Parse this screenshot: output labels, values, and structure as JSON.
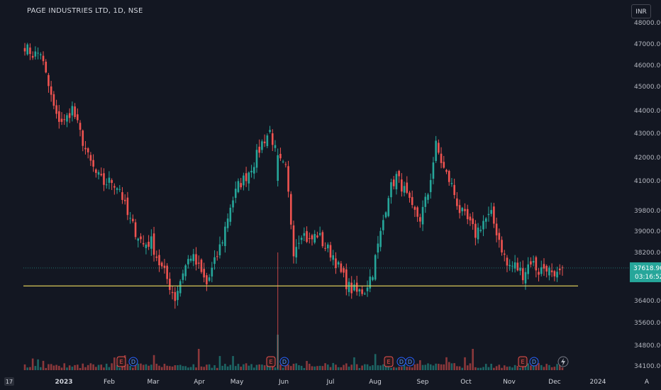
{
  "header": {
    "title": "PAGE INDUSTRIES LTD, 1D, NSE",
    "currency": "INR",
    "logo_text": "17"
  },
  "chart_data": {
    "type": "candlestick",
    "symbol": "PAGE INDUSTRIES LTD",
    "timeframe": "1D",
    "exchange": "NSE",
    "currency": "INR",
    "y_ticks": [
      "48000.00",
      "47000.00",
      "46000.00",
      "45000.00",
      "44000.00",
      "43000.00",
      "42000.00",
      "41000.00",
      "39800.00",
      "39000.00",
      "38200.00",
      "36400.00",
      "35600.00",
      "34800.00",
      "34100.00"
    ],
    "x_ticks": [
      {
        "label": "2023",
        "bold": true
      },
      {
        "label": "Feb",
        "bold": false
      },
      {
        "label": "Mar",
        "bold": false
      },
      {
        "label": "Apr",
        "bold": false
      },
      {
        "label": "May",
        "bold": false
      },
      {
        "label": "Jun",
        "bold": false
      },
      {
        "label": "Jul",
        "bold": false
      },
      {
        "label": "Aug",
        "bold": false
      },
      {
        "label": "Sep",
        "bold": false
      },
      {
        "label": "Oct",
        "bold": false
      },
      {
        "label": "Nov",
        "bold": false
      },
      {
        "label": "Dec",
        "bold": false
      },
      {
        "label": "2024",
        "bold": false
      }
    ],
    "last_price": "37618.90",
    "countdown": "03:16:52",
    "support_level": 36950,
    "close_path": [
      [
        "Dec 2022",
        46900
      ],
      [
        "Dec 2022",
        46500
      ],
      [
        "Dec 2022",
        46600
      ],
      [
        "Dec 2022",
        45000
      ],
      [
        "Jan 2023",
        43700
      ],
      [
        "Jan 2023",
        43500
      ],
      [
        "Jan 2023",
        44100
      ],
      [
        "Jan 2023",
        43000
      ],
      [
        "Jan 2023",
        42000
      ],
      [
        "Jan 2023",
        41300
      ],
      [
        "Jan 2023",
        40900
      ],
      [
        "Feb 2023",
        41000
      ],
      [
        "Feb 2023",
        40700
      ],
      [
        "Feb 2023",
        39600
      ],
      [
        "Feb 2023",
        39000
      ],
      [
        "Feb 2023",
        38500
      ],
      [
        "Feb 2023",
        38600
      ],
      [
        "Mar 2023",
        37800
      ],
      [
        "Mar 2023",
        37200
      ],
      [
        "Mar 2023",
        36500
      ],
      [
        "Mar 2023",
        37500
      ],
      [
        "Mar 2023",
        38100
      ],
      [
        "Apr 2023",
        37600
      ],
      [
        "Apr 2023",
        37000
      ],
      [
        "Apr 2023",
        37800
      ],
      [
        "Apr 2023",
        38700
      ],
      [
        "Apr 2023",
        40000
      ],
      [
        "Apr 2023",
        40800
      ],
      [
        "May 2023",
        41200
      ],
      [
        "May 2023",
        41800
      ],
      [
        "May 2023",
        42600
      ],
      [
        "May 2023",
        43100
      ],
      [
        "May 2023",
        41900
      ],
      [
        "May 2023",
        41500
      ],
      [
        "Jun 2023",
        38300
      ],
      [
        "Jun 2023",
        39000
      ],
      [
        "Jun 2023",
        38600
      ],
      [
        "Jun 2023",
        38900
      ],
      [
        "Jun 2023",
        38400
      ],
      [
        "Jul 2023",
        38100
      ],
      [
        "Jul 2023",
        37400
      ],
      [
        "Jul 2023",
        36900
      ],
      [
        "Jul 2023",
        36700
      ],
      [
        "Jul 2023",
        36800
      ],
      [
        "Aug 2023",
        37500
      ],
      [
        "Aug 2023",
        38900
      ],
      [
        "Aug 2023",
        40500
      ],
      [
        "Aug 2023",
        41200
      ],
      [
        "Aug 2023",
        40600
      ],
      [
        "Aug 2023",
        39800
      ],
      [
        "Sep 2023",
        39500
      ],
      [
        "Sep 2023",
        40500
      ],
      [
        "Sep 2023",
        42500
      ],
      [
        "Sep 2023",
        41500
      ],
      [
        "Sep 2023",
        40800
      ],
      [
        "Sep 2023",
        39800
      ],
      [
        "Oct 2023",
        39400
      ],
      [
        "Oct 2023",
        38900
      ],
      [
        "Oct 2023",
        39400
      ],
      [
        "Oct 2023",
        39600
      ],
      [
        "Oct 2023",
        38700
      ],
      [
        "Nov 2023",
        37700
      ],
      [
        "Nov 2023",
        37700
      ],
      [
        "Nov 2023",
        37400
      ],
      [
        "Nov 2023",
        37900
      ],
      [
        "Nov 2023",
        37500
      ],
      [
        "Dec 2023",
        37700
      ],
      [
        "Dec 2023",
        37100
      ],
      [
        "Dec 2023",
        37618.9
      ]
    ],
    "events": [
      {
        "label": "E",
        "type": "earnings"
      },
      {
        "label": "D",
        "type": "dividend"
      },
      {
        "label": "E",
        "type": "earnings"
      },
      {
        "label": "D",
        "type": "dividend"
      },
      {
        "label": "E",
        "type": "earnings"
      },
      {
        "label": "D",
        "type": "dividend"
      },
      {
        "label": "D",
        "type": "dividend"
      },
      {
        "label": "E",
        "type": "earnings"
      },
      {
        "label": "D",
        "type": "dividend"
      }
    ],
    "colors": {
      "up": "#26a69a",
      "down": "#ef5350",
      "background": "#131722",
      "support": "#d9c95a",
      "price_label": "#26a69a"
    }
  }
}
